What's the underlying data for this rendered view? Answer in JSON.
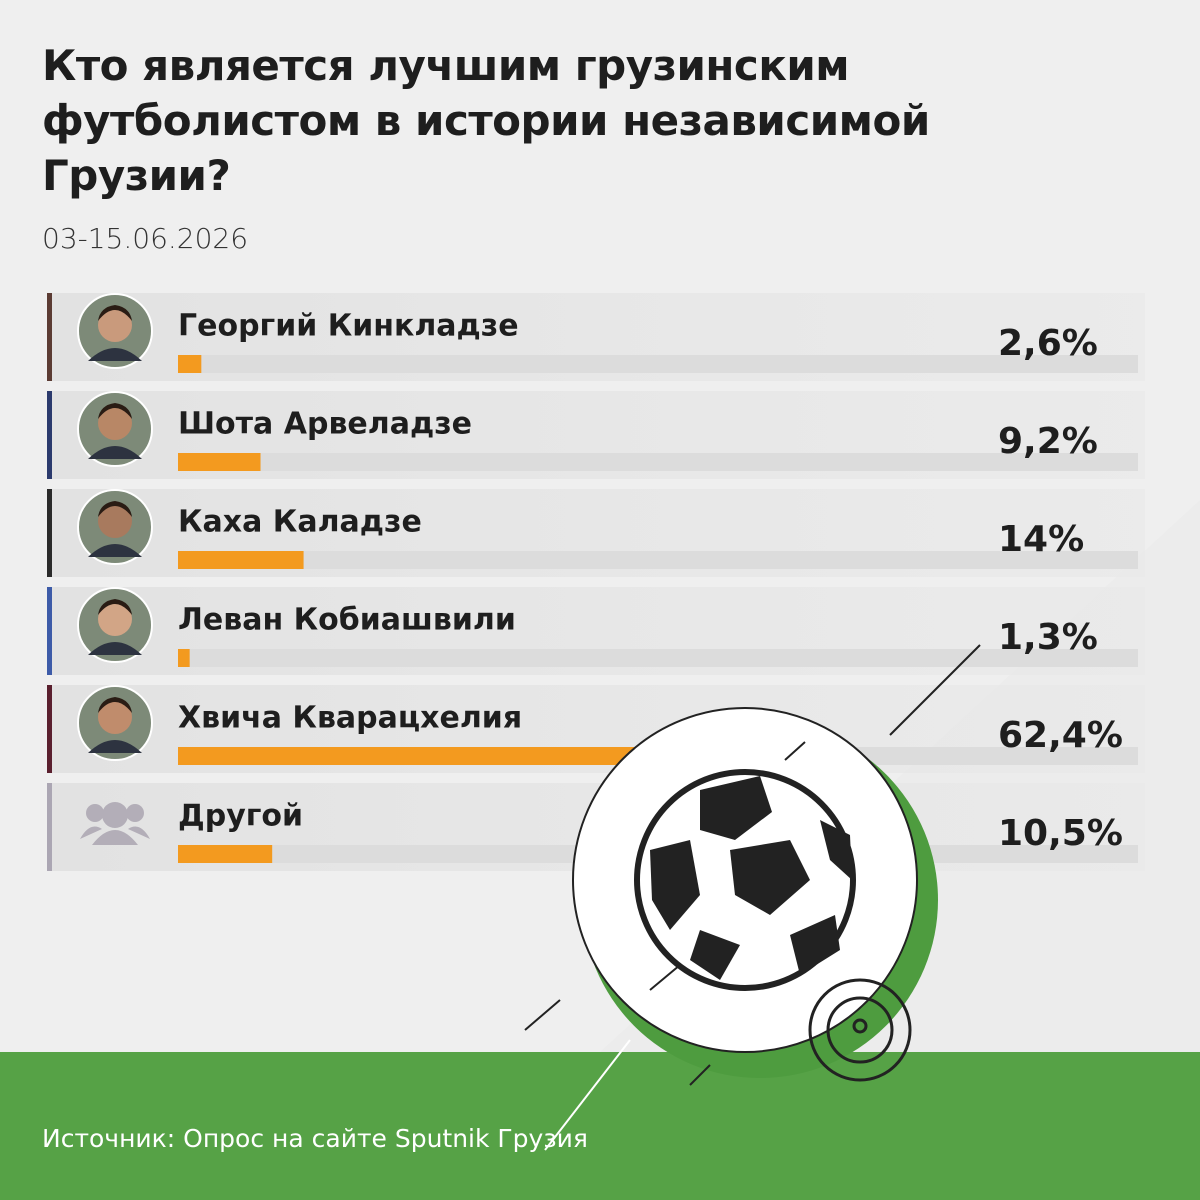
{
  "chart_data": {
    "type": "bar",
    "orientation": "horizontal",
    "title": "Кто является лучшим грузинским футболистом в истории независимой Грузии?",
    "subtitle": "03-15.06.2026",
    "categories": [
      "Георгий Кинкладзе",
      "Шота Арвеладзе",
      "Каха Каладзе",
      "Леван Кобиашвили",
      "Хвича Кварацхелия",
      "Другой"
    ],
    "values": [
      2.6,
      9.2,
      14,
      1.3,
      62.4,
      10.5
    ],
    "value_labels": [
      "2,6%",
      "9,2%",
      "14%",
      "1,3%",
      "62,4%",
      "10,5%"
    ],
    "color": "#f39a1f",
    "xlim": [
      0,
      100
    ]
  },
  "source": "Источник: Опрос на сайте Sputnik Грузия"
}
